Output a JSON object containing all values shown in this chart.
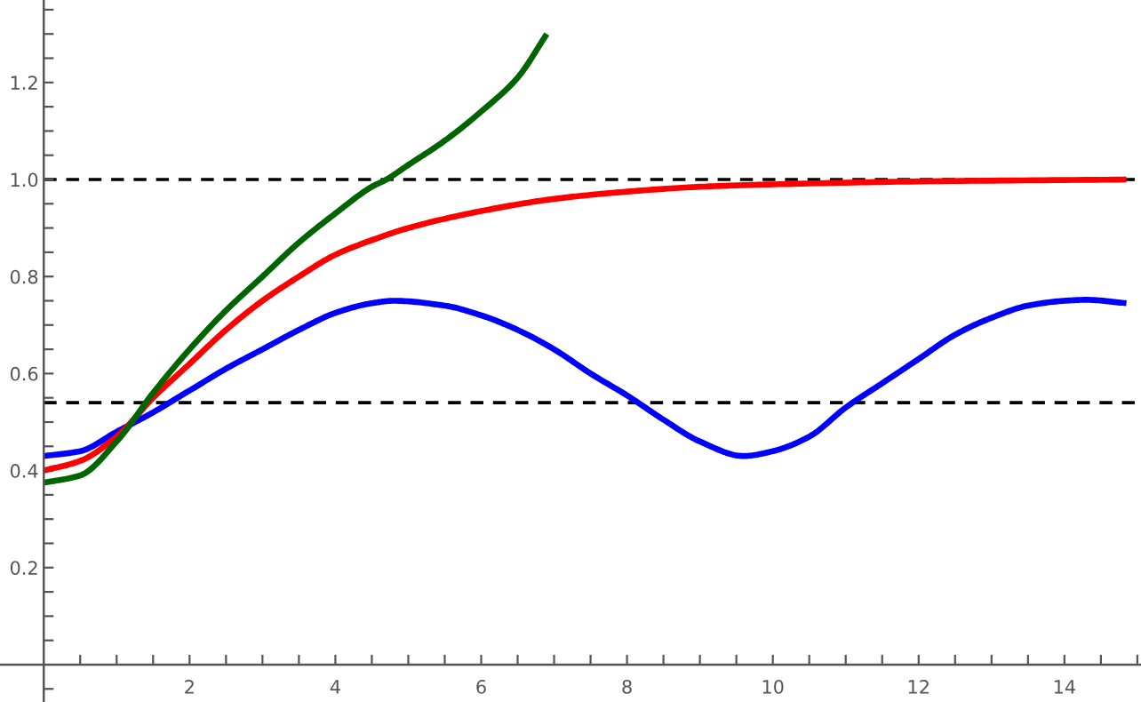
{
  "chart_data": {
    "type": "line",
    "xlim": [
      -0.6,
      15.05
    ],
    "ylim": [
      -0.077,
      1.37
    ],
    "xticks": [
      {
        "value": 0.5,
        "label": null
      },
      {
        "value": 1,
        "label": null
      },
      {
        "value": 1.5,
        "label": null
      },
      2,
      {
        "value": 2.5,
        "label": null
      },
      {
        "value": 3,
        "label": null
      },
      {
        "value": 3.5,
        "label": null
      },
      4,
      {
        "value": 4.5,
        "label": null
      },
      {
        "value": 5,
        "label": null
      },
      {
        "value": 5.5,
        "label": null
      },
      6,
      {
        "value": 6.5,
        "label": null
      },
      {
        "value": 7,
        "label": null
      },
      {
        "value": 7.5,
        "label": null
      },
      8,
      {
        "value": 8.5,
        "label": null
      },
      {
        "value": 9,
        "label": null
      },
      {
        "value": 9.5,
        "label": null
      },
      10,
      {
        "value": 10.5,
        "label": null
      },
      {
        "value": 11,
        "label": null
      },
      {
        "value": 11.5,
        "label": null
      },
      12,
      {
        "value": 12.5,
        "label": null
      },
      {
        "value": 13,
        "label": null
      },
      {
        "value": 13.5,
        "label": null
      },
      14,
      {
        "value": 14.5,
        "label": null
      },
      {
        "value": 15,
        "label": null
      }
    ],
    "yticks": [
      {
        "value": -0.05,
        "label": null
      },
      {
        "value": 0.05,
        "label": null
      },
      {
        "value": 0.1,
        "label": null
      },
      {
        "value": 0.15,
        "label": null
      },
      0.2,
      {
        "value": 0.25,
        "label": null
      },
      {
        "value": 0.3,
        "label": null
      },
      {
        "value": 0.35,
        "label": null
      },
      0.4,
      {
        "value": 0.45,
        "label": null
      },
      {
        "value": 0.5,
        "label": null
      },
      {
        "value": 0.55,
        "label": null
      },
      0.6,
      {
        "value": 0.65,
        "label": null
      },
      {
        "value": 0.7,
        "label": null
      },
      {
        "value": 0.75,
        "label": null
      },
      0.8,
      {
        "value": 0.85,
        "label": null
      },
      {
        "value": 0.9,
        "label": null
      },
      {
        "value": 0.95,
        "label": null
      },
      {
        "value": 1.0,
        "label": "1.0"
      },
      {
        "value": 1.05,
        "label": null
      },
      {
        "value": 1.1,
        "label": null
      },
      {
        "value": 1.15,
        "label": null
      },
      1.2,
      {
        "value": 1.25,
        "label": null
      },
      {
        "value": 1.3,
        "label": null
      },
      {
        "value": 1.35,
        "label": null
      }
    ],
    "grid": false,
    "legend": false,
    "marker": "none",
    "line_style": "solid",
    "ref_lines": [
      {
        "axis": "y",
        "value": 1.0,
        "color": "#000000",
        "line_style": "dashed"
      },
      {
        "axis": "y",
        "value": 0.54,
        "color": "#000000",
        "line_style": "dashed"
      }
    ],
    "series": [
      {
        "color": "#0000ff",
        "x": [
          0,
          0.5,
          1,
          1.5,
          2,
          2.5,
          3,
          3.5,
          4,
          4.5,
          4.8,
          5.5,
          6,
          6.5,
          7,
          7.5,
          8,
          8.5,
          9,
          9.6,
          10,
          10.5,
          11,
          11.5,
          12,
          12.5,
          13,
          13.5,
          14,
          14.3,
          14.85
        ],
        "values": [
          0.43,
          0.44,
          0.48,
          0.52,
          0.565,
          0.61,
          0.65,
          0.69,
          0.725,
          0.745,
          0.75,
          0.74,
          0.72,
          0.69,
          0.65,
          0.6,
          0.555,
          0.505,
          0.46,
          0.43,
          0.44,
          0.47,
          0.53,
          0.58,
          0.63,
          0.68,
          0.715,
          0.74,
          0.75,
          0.752,
          0.745
        ]
      },
      {
        "color": "#ff0000",
        "x": [
          0,
          0.5,
          1,
          1.5,
          2,
          2.5,
          3,
          3.5,
          4,
          4.5,
          5,
          6,
          7,
          8,
          9,
          10,
          12,
          14.85
        ],
        "values": [
          0.4,
          0.42,
          0.47,
          0.55,
          0.62,
          0.69,
          0.75,
          0.8,
          0.845,
          0.875,
          0.9,
          0.935,
          0.96,
          0.975,
          0.985,
          0.99,
          0.996,
          1.0
        ]
      },
      {
        "color": "#006400",
        "x": [
          0,
          0.5,
          1,
          1.5,
          2,
          2.5,
          3,
          3.5,
          4,
          4.5,
          4.7,
          5,
          5.5,
          6,
          6.5,
          6.9
        ],
        "values": [
          0.375,
          0.39,
          0.46,
          0.56,
          0.65,
          0.73,
          0.8,
          0.87,
          0.93,
          0.985,
          1.0,
          1.03,
          1.08,
          1.14,
          1.21,
          1.3
        ]
      }
    ]
  }
}
